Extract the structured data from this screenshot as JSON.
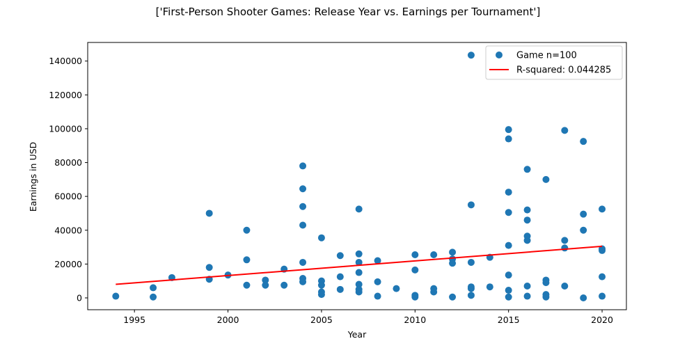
{
  "chart_data": {
    "type": "scatter",
    "title": "['First-Person Shooter Games: Release Year vs. Earnings per Tournament']",
    "xlabel": "Year",
    "ylabel": "Earnings in USD",
    "xlim": [
      1992.5,
      2021.3
    ],
    "ylim": [
      -7000,
      151000
    ],
    "xticks": [
      1995,
      2000,
      2005,
      2010,
      2015,
      2020
    ],
    "yticks": [
      0,
      20000,
      40000,
      60000,
      80000,
      100000,
      120000,
      140000
    ],
    "grid": false,
    "legend_position": "top-right",
    "series": [
      {
        "name": "Game n=100",
        "type": "scatter",
        "color": "#1f77b4",
        "points": [
          [
            1994,
            1000
          ],
          [
            1996,
            6000
          ],
          [
            1996,
            500
          ],
          [
            1997,
            12000
          ],
          [
            1999,
            50000
          ],
          [
            1999,
            18000
          ],
          [
            1999,
            11000
          ],
          [
            2000,
            13500
          ],
          [
            2001,
            40000
          ],
          [
            2001,
            22500
          ],
          [
            2001,
            7500
          ],
          [
            2002,
            10500
          ],
          [
            2002,
            7500
          ],
          [
            2003,
            17000
          ],
          [
            2003,
            7500
          ],
          [
            2004,
            78000
          ],
          [
            2004,
            64500
          ],
          [
            2004,
            54000
          ],
          [
            2004,
            43000
          ],
          [
            2004,
            21000
          ],
          [
            2004,
            11500
          ],
          [
            2004,
            9500
          ],
          [
            2005,
            35500
          ],
          [
            2005,
            10000
          ],
          [
            2005,
            7500
          ],
          [
            2005,
            3500
          ],
          [
            2005,
            2000
          ],
          [
            2006,
            25000
          ],
          [
            2006,
            12500
          ],
          [
            2006,
            5000
          ],
          [
            2007,
            52500
          ],
          [
            2007,
            26000
          ],
          [
            2007,
            21000
          ],
          [
            2007,
            15000
          ],
          [
            2007,
            8000
          ],
          [
            2007,
            5000
          ],
          [
            2007,
            3500
          ],
          [
            2008,
            22000
          ],
          [
            2008,
            9500
          ],
          [
            2008,
            1000
          ],
          [
            2009,
            5500
          ],
          [
            2010,
            25500
          ],
          [
            2010,
            16500
          ],
          [
            2010,
            1500
          ],
          [
            2010,
            500
          ],
          [
            2011,
            25500
          ],
          [
            2011,
            5500
          ],
          [
            2011,
            3500
          ],
          [
            2012,
            27000
          ],
          [
            2012,
            23000
          ],
          [
            2012,
            20500
          ],
          [
            2012,
            500
          ],
          [
            2013,
            143500
          ],
          [
            2013,
            55000
          ],
          [
            2013,
            21000
          ],
          [
            2013,
            6500
          ],
          [
            2013,
            5500
          ],
          [
            2013,
            1500
          ],
          [
            2014,
            24000
          ],
          [
            2014,
            6500
          ],
          [
            2015,
            99500
          ],
          [
            2015,
            94000
          ],
          [
            2015,
            62500
          ],
          [
            2015,
            50500
          ],
          [
            2015,
            31000
          ],
          [
            2015,
            13500
          ],
          [
            2015,
            4500
          ],
          [
            2015,
            500
          ],
          [
            2016,
            76000
          ],
          [
            2016,
            52000
          ],
          [
            2016,
            46000
          ],
          [
            2016,
            36500
          ],
          [
            2016,
            34000
          ],
          [
            2016,
            7000
          ],
          [
            2016,
            1000
          ],
          [
            2017,
            70000
          ],
          [
            2017,
            10500
          ],
          [
            2017,
            9000
          ],
          [
            2017,
            2000
          ],
          [
            2017,
            500
          ],
          [
            2018,
            99000
          ],
          [
            2018,
            34000
          ],
          [
            2018,
            29500
          ],
          [
            2018,
            7000
          ],
          [
            2019,
            92500
          ],
          [
            2019,
            49500
          ],
          [
            2019,
            40000
          ],
          [
            2019,
            0
          ],
          [
            2020,
            52500
          ],
          [
            2020,
            29000
          ],
          [
            2020,
            28000
          ],
          [
            2020,
            12500
          ],
          [
            2020,
            1000
          ]
        ]
      },
      {
        "name": "R-squared: 0.044285",
        "type": "line",
        "color": "#ff0000",
        "points": [
          [
            1994,
            8000
          ],
          [
            2020,
            30500
          ]
        ]
      }
    ]
  }
}
